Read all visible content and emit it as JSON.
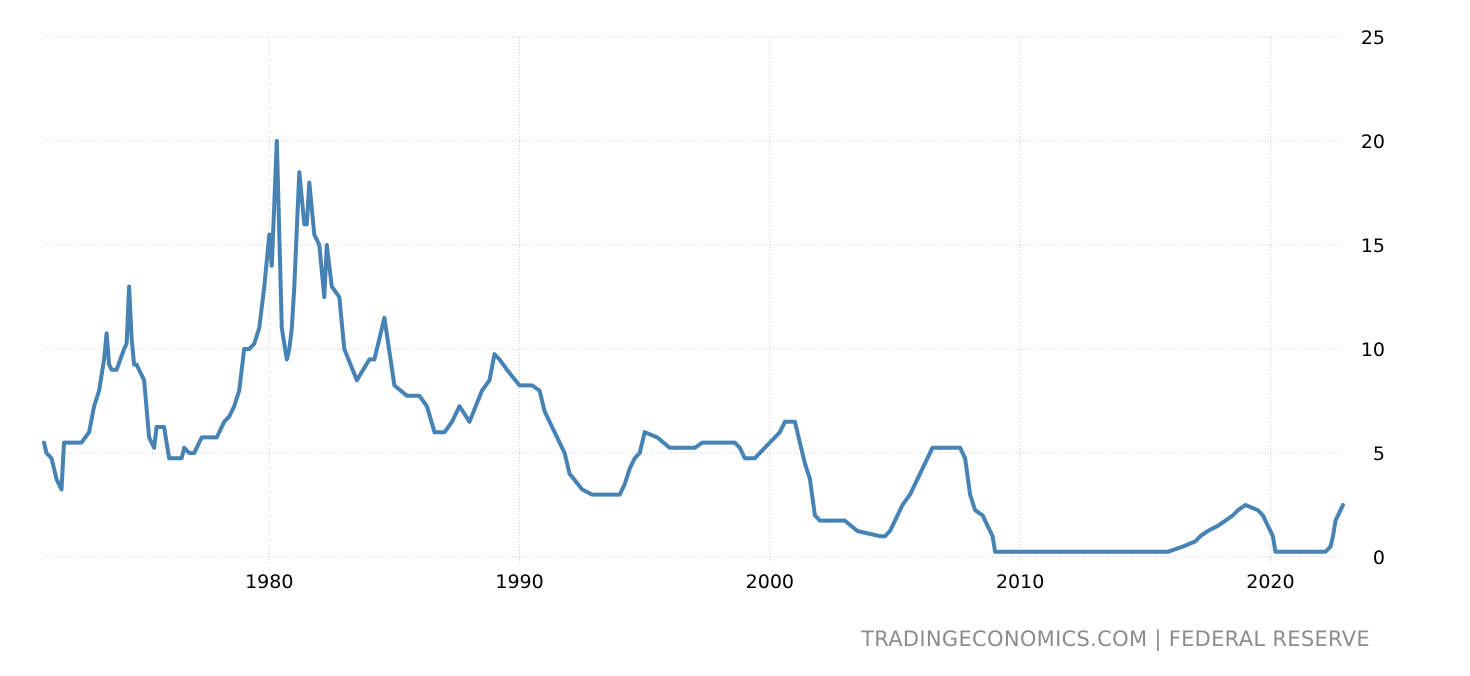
{
  "source": "TRADINGECONOMICS.COM | FEDERAL RESERVE",
  "colors": {
    "line": "#4682b4",
    "grid": "#c8c8c8"
  },
  "chart_data": {
    "type": "line",
    "title": "",
    "xlabel": "",
    "ylabel": "",
    "xlim": [
      1971.0,
      2022.9
    ],
    "ylim": [
      0,
      25
    ],
    "x_ticks": [
      1980,
      1990,
      2000,
      2010,
      2020
    ],
    "y_ticks": [
      0,
      5,
      10,
      15,
      20,
      25
    ],
    "y_axis_position": "right",
    "grid": true,
    "legend": "none",
    "series": [
      {
        "x": [
          1971.0,
          1971.1,
          1971.3,
          1971.5,
          1971.6,
          1971.7,
          1971.8,
          1972.0,
          1972.5,
          1972.8,
          1973.0,
          1973.2,
          1973.4,
          1973.5,
          1973.6,
          1973.7,
          1973.8,
          1973.9,
          1974.2,
          1974.3,
          1974.4,
          1974.5,
          1974.6,
          1974.7,
          1975.0,
          1975.2,
          1975.4,
          1975.5,
          1975.7,
          1975.8,
          1976.0,
          1976.2,
          1976.5,
          1976.6,
          1976.8,
          1977.0,
          1977.3,
          1977.6,
          1977.9,
          1978.0,
          1978.2,
          1978.4,
          1978.6,
          1978.8,
          1979.0,
          1979.2,
          1979.4,
          1979.6,
          1979.8,
          1980.0,
          1980.1,
          1980.3,
          1980.5,
          1980.7,
          1980.8,
          1980.9,
          1981.0,
          1981.2,
          1981.4,
          1981.5,
          1981.6,
          1981.8,
          1982.0,
          1982.2,
          1982.3,
          1982.5,
          1982.8,
          1983.0,
          1983.5,
          1984.0,
          1984.2,
          1984.4,
          1984.6,
          1985.0,
          1985.5,
          1986.0,
          1986.3,
          1986.6,
          1987.0,
          1987.3,
          1987.6,
          1988.0,
          1988.5,
          1988.8,
          1989.0,
          1989.2,
          1989.5,
          1990.0,
          1990.5,
          1990.8,
          1991.0,
          1991.3,
          1991.6,
          1991.8,
          1992.0,
          1992.5,
          1992.9,
          1993.5,
          1994.0,
          1994.2,
          1994.4,
          1994.6,
          1994.8,
          1995.0,
          1995.5,
          1996.0,
          1996.5,
          1997.0,
          1997.3,
          1998.0,
          1998.6,
          1998.8,
          1999.0,
          1999.4,
          1999.6,
          2000.0,
          2000.4,
          2000.6,
          2001.0,
          2001.2,
          2001.4,
          2001.6,
          2001.8,
          2002.0,
          2003.0,
          2003.5,
          2004.4,
          2004.6,
          2004.8,
          2005.0,
          2005.3,
          2005.6,
          2005.9,
          2006.2,
          2006.5,
          2007.6,
          2007.8,
          2008.0,
          2008.2,
          2008.5,
          2008.9,
          2009.0,
          2015.9,
          2016.5,
          2017.0,
          2017.2,
          2017.5,
          2017.9,
          2018.2,
          2018.5,
          2018.7,
          2019.0,
          2019.5,
          2019.7,
          2019.8,
          2020.1,
          2020.2,
          2022.2,
          2022.4,
          2022.5,
          2022.6,
          2022.9
        ],
        "values": [
          5.5,
          5.0,
          4.75,
          3.75,
          3.5,
          3.25,
          5.5,
          5.5,
          5.5,
          6.0,
          7.25,
          8.0,
          9.5,
          10.75,
          9.25,
          9.0,
          9.0,
          9.0,
          10.0,
          10.25,
          13.0,
          10.5,
          9.25,
          9.25,
          8.5,
          5.75,
          5.25,
          6.25,
          6.25,
          6.25,
          4.75,
          4.75,
          4.75,
          5.25,
          5.0,
          5.0,
          5.75,
          5.75,
          5.75,
          6.0,
          6.5,
          6.75,
          7.25,
          8.0,
          10.0,
          10.0,
          10.25,
          11.0,
          13.0,
          15.5,
          14.0,
          20.0,
          11.0,
          9.5,
          10.0,
          11.0,
          13.0,
          18.5,
          16.0,
          16.0,
          18.0,
          15.5,
          15.0,
          12.5,
          15.0,
          13.0,
          12.5,
          10.0,
          8.5,
          9.5,
          9.5,
          10.5,
          11.5,
          8.25,
          7.75,
          7.75,
          7.25,
          6.0,
          6.0,
          6.5,
          7.25,
          6.5,
          8.0,
          8.5,
          9.75,
          9.5,
          9.0,
          8.25,
          8.25,
          8.0,
          7.0,
          6.25,
          5.5,
          5.0,
          4.0,
          3.25,
          3.0,
          3.0,
          3.0,
          3.5,
          4.25,
          4.75,
          5.0,
          6.0,
          5.75,
          5.25,
          5.25,
          5.25,
          5.5,
          5.5,
          5.5,
          5.25,
          4.75,
          4.75,
          5.0,
          5.5,
          6.0,
          6.5,
          6.5,
          5.5,
          4.5,
          3.75,
          2.0,
          1.75,
          1.75,
          1.25,
          1.0,
          1.0,
          1.25,
          1.75,
          2.5,
          3.0,
          3.75,
          4.5,
          5.25,
          5.25,
          4.75,
          3.0,
          2.25,
          2.0,
          1.0,
          0.25,
          0.25,
          0.5,
          0.75,
          1.0,
          1.25,
          1.5,
          1.75,
          2.0,
          2.25,
          2.5,
          2.25,
          2.0,
          1.75,
          1.0,
          0.25,
          0.25,
          0.5,
          1.0,
          1.75,
          2.5
        ]
      }
    ]
  }
}
